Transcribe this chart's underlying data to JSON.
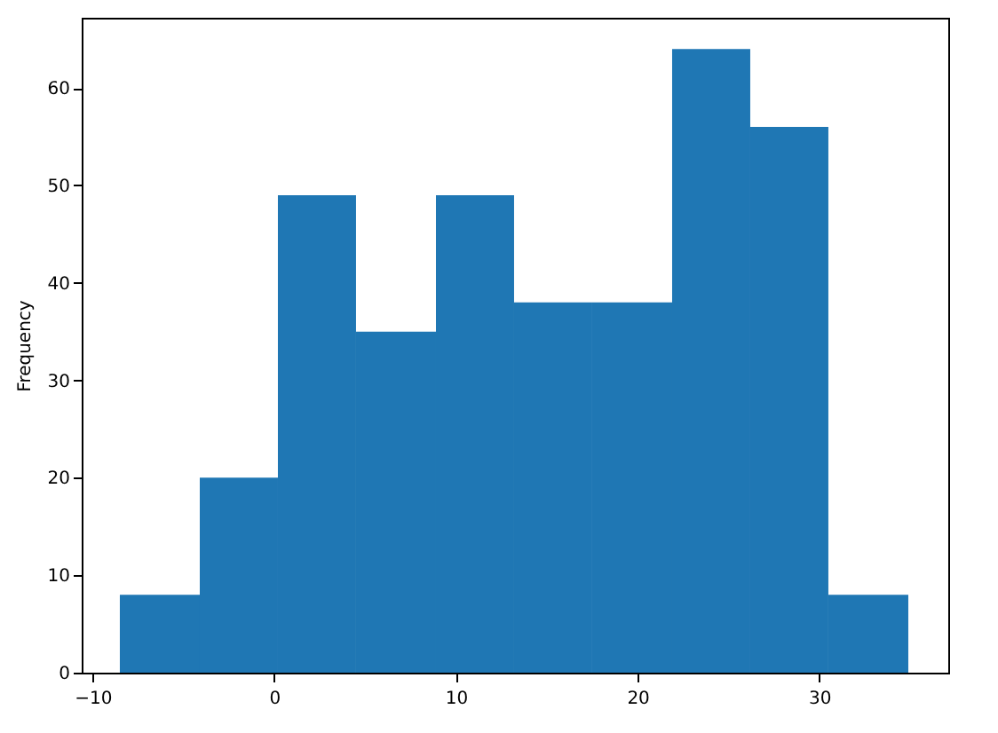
{
  "chart_data": {
    "type": "histogram",
    "ylabel": "Frequency",
    "color": "#1f77b4",
    "bins": [
      -8.5,
      -4.1,
      0.2,
      4.5,
      8.9,
      13.2,
      17.5,
      21.9,
      26.2,
      30.5,
      34.9
    ],
    "values": [
      8,
      20,
      49,
      35,
      49,
      38,
      38,
      64,
      56,
      8
    ],
    "xlim": [
      -10.6,
      37.1
    ],
    "xticks": [
      -10,
      0,
      10,
      20,
      30
    ],
    "ylim": [
      0,
      67.2
    ],
    "yticks": [
      0,
      10,
      20,
      30,
      40,
      50,
      60
    ],
    "grid": false
  }
}
